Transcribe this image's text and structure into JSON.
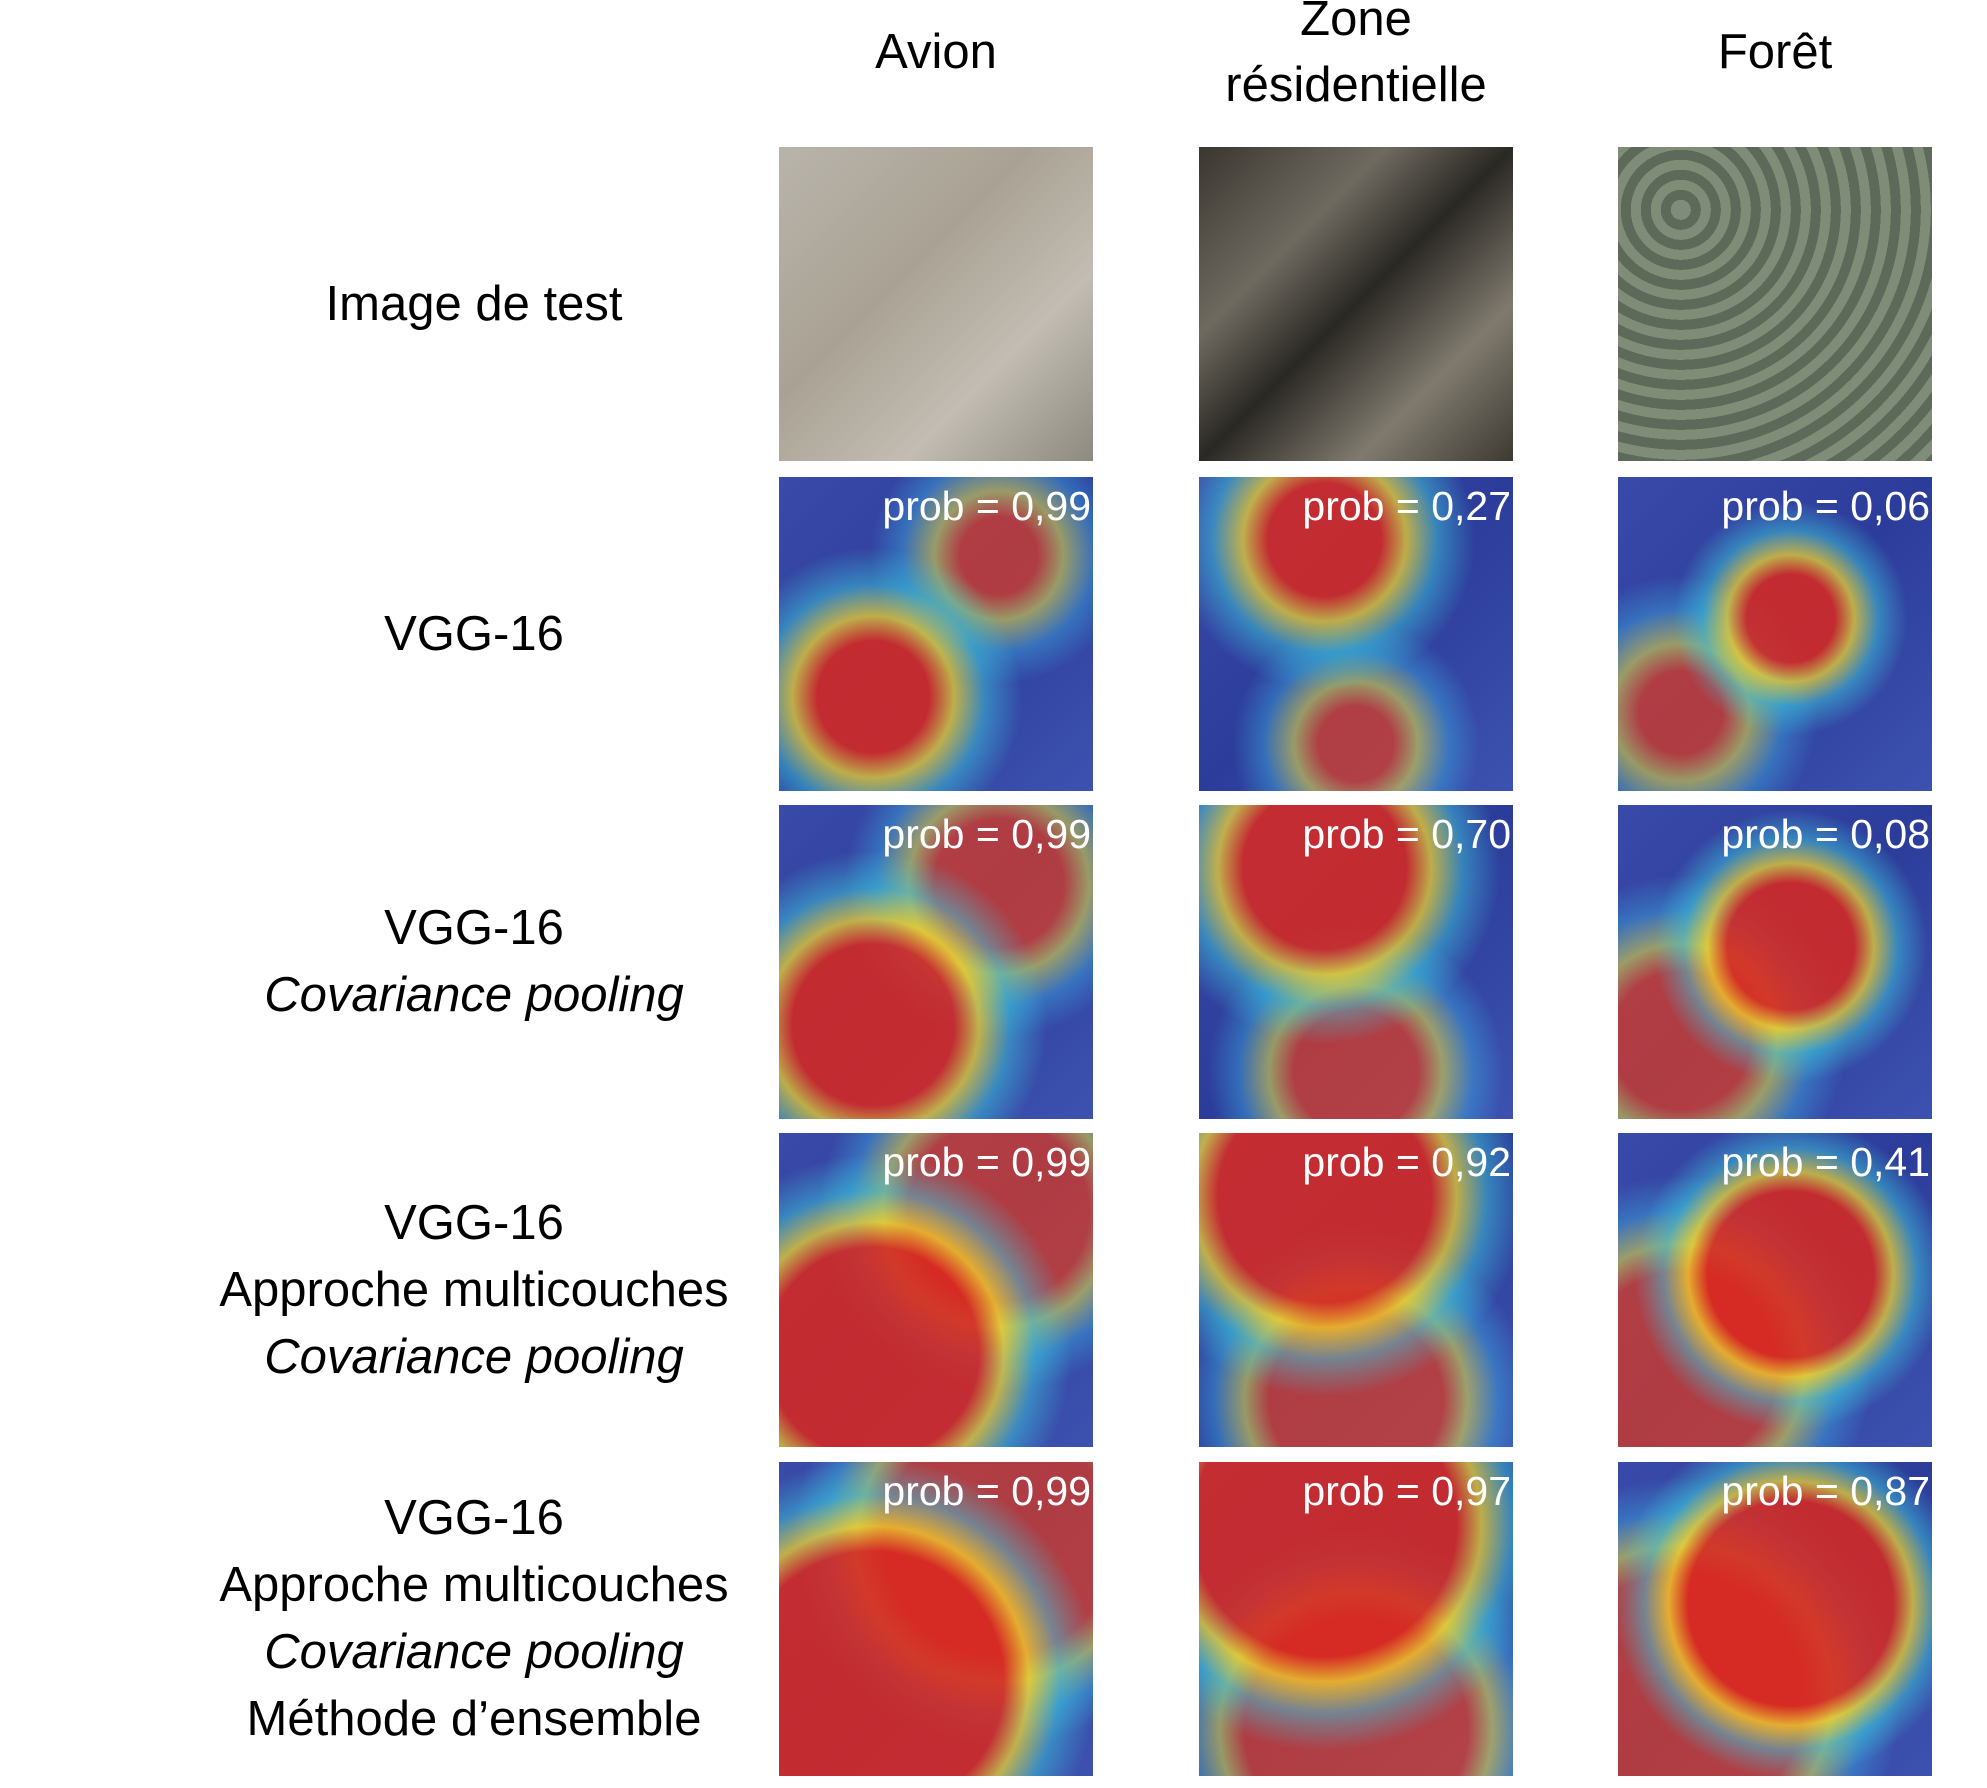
{
  "columns": [
    {
      "lines": [
        "Avion"
      ]
    },
    {
      "lines": [
        "Zone",
        "résidentielle"
      ]
    },
    {
      "lines": [
        "Forêt"
      ]
    }
  ],
  "rows": [
    {
      "label": [
        {
          "text": "Image de test",
          "italic": false
        }
      ],
      "probs": [
        null,
        null,
        null
      ]
    },
    {
      "label": [
        {
          "text": "VGG-16",
          "italic": false
        }
      ],
      "probs": [
        "prob = 0,99",
        "prob = 0,27",
        "prob = 0,06"
      ]
    },
    {
      "label": [
        {
          "text": "VGG-16",
          "italic": false
        },
        {
          "text": "Covariance pooling",
          "italic": true
        }
      ],
      "probs": [
        "prob = 0,99",
        "prob = 0,70",
        "prob = 0,08"
      ]
    },
    {
      "label": [
        {
          "text": "VGG-16",
          "italic": false
        },
        {
          "text": "Approche multicouches",
          "italic": false
        },
        {
          "text": "Covariance pooling",
          "italic": true
        }
      ],
      "probs": [
        "prob = 0,99",
        "prob = 0,92",
        "prob = 0,41"
      ]
    },
    {
      "label": [
        {
          "text": "VGG-16",
          "italic": false
        },
        {
          "text": "Approche multicouches",
          "italic": false
        },
        {
          "text": "Covariance pooling",
          "italic": true
        },
        {
          "text": "Méthode d’ensemble",
          "italic": false
        }
      ],
      "probs": [
        "prob = 0,99",
        "prob = 0,97",
        "prob = 0,87"
      ]
    }
  ]
}
